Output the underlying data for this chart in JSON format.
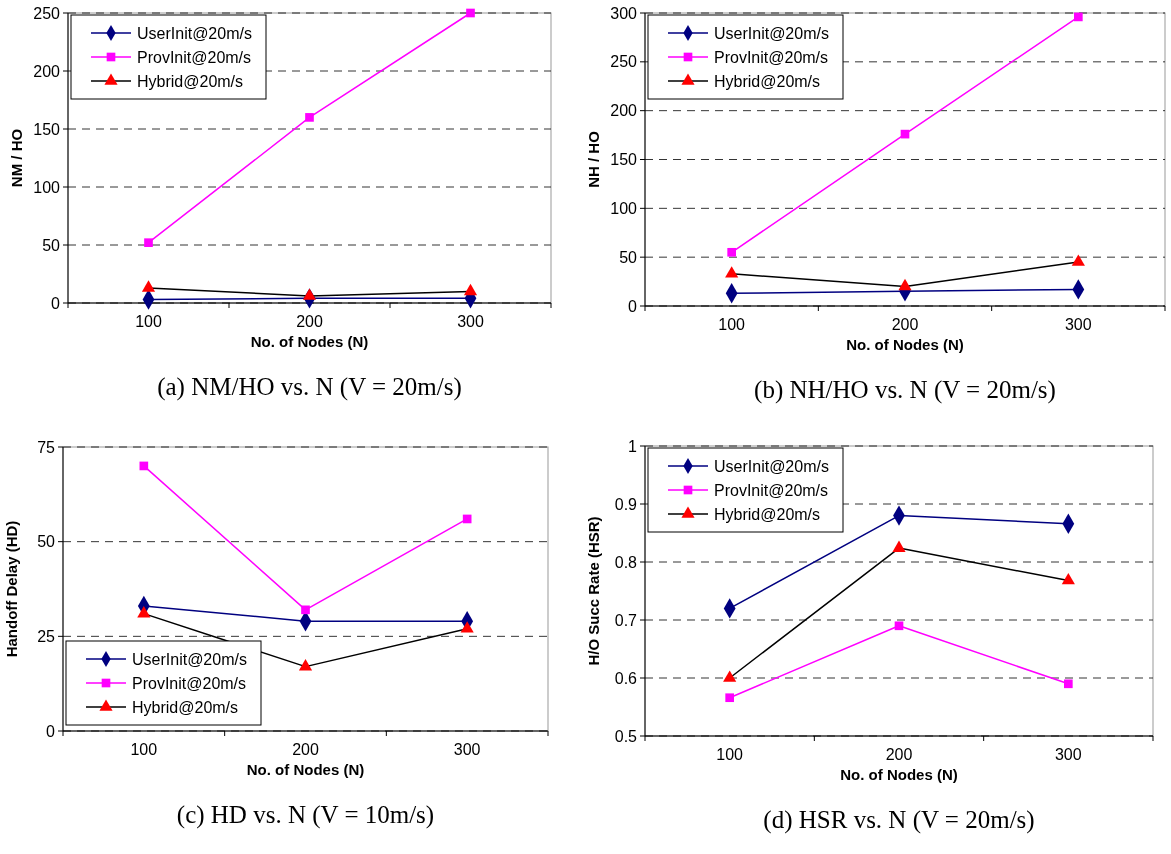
{
  "chart_data": [
    {
      "type": "line",
      "title": "(a) NM/HO vs. N (V = 20m/s)",
      "xlabel": "No. of Nodes (N)",
      "ylabel": "NM / HO",
      "categories": [
        "100",
        "200",
        "300"
      ],
      "ylim": [
        0,
        250
      ],
      "yticks": [
        0,
        50,
        100,
        150,
        200,
        250
      ],
      "grid": "y",
      "legend": "top left",
      "line_style": "solid",
      "series": [
        {
          "name": "UserInit@20m/s",
          "color": "#000080",
          "marker": "diamond",
          "values": [
            3,
            4,
            4
          ]
        },
        {
          "name": "ProvInit@20m/s",
          "color": "#ff00ff",
          "marker": "square",
          "values": [
            52,
            160,
            250
          ]
        },
        {
          "name": "Hybrid@20m/s",
          "color": "#000000",
          "colors": [
            "#ff0000",
            "#ff0000",
            "#ff0000"
          ],
          "marker": "triangle",
          "values": [
            13,
            6,
            10
          ]
        }
      ]
    },
    {
      "type": "line",
      "title": "(b) NH/HO vs. N (V = 20m/s)",
      "xlabel": "No. of Nodes (N)",
      "ylabel": "NH / HO",
      "categories": [
        "100",
        "200",
        "300"
      ],
      "ylim": [
        0,
        300
      ],
      "yticks": [
        0,
        50,
        100,
        150,
        200,
        250,
        300
      ],
      "grid": "y",
      "legend": "top left",
      "line_style": "solid",
      "series": [
        {
          "name": "UserInit@20m/s",
          "color": "#000080",
          "marker": "diamond",
          "values": [
            13,
            15,
            17
          ]
        },
        {
          "name": "ProvInit@20m/s",
          "color": "#ff00ff",
          "marker": "square",
          "values": [
            55,
            176,
            296
          ]
        },
        {
          "name": "Hybrid@20m/s",
          "color": "#000000",
          "colors": [
            "#ff0000",
            "#ff0000",
            "#ff0000"
          ],
          "marker": "triangle",
          "values": [
            33,
            20,
            45
          ]
        }
      ]
    },
    {
      "type": "line",
      "title": "(c) HD vs. N (V = 10m/s)",
      "xlabel": "No. of Nodes (N)",
      "ylabel": "Handoff Delay (HD)",
      "categories": [
        "100",
        "200",
        "300"
      ],
      "ylim": [
        0,
        75
      ],
      "yticks": [
        0,
        25,
        50,
        75
      ],
      "grid": "y",
      "legend": "bottom left",
      "line_style": "solid",
      "series": [
        {
          "name": "UserInit@20m/s",
          "color": "#000080",
          "marker": "diamond",
          "values": [
            33,
            29,
            29
          ]
        },
        {
          "name": "ProvInit@20m/s",
          "color": "#ff00ff",
          "marker": "square",
          "values": [
            70,
            32,
            56
          ]
        },
        {
          "name": "Hybrid@20m/s",
          "color": "#000000",
          "colors": [
            "#ff0000",
            "#ff0000",
            "#ff0000"
          ],
          "marker": "triangle",
          "values": [
            31,
            17,
            27
          ]
        }
      ]
    },
    {
      "type": "line",
      "title": "(d) HSR vs. N (V = 20m/s)",
      "xlabel": "No. of Nodes (N)",
      "ylabel": "H/O Succ Rate (HSR)",
      "categories": [
        "100",
        "200",
        "300"
      ],
      "ylim": [
        0.5,
        1
      ],
      "yticks": [
        0.5,
        0.6,
        0.7,
        0.8,
        0.9,
        1
      ],
      "grid": "y",
      "legend": "top left",
      "line_style": "solid",
      "series": [
        {
          "name": "UserInit@20m/s",
          "color": "#000080",
          "marker": "diamond",
          "values": [
            0.72,
            0.88,
            0.866
          ]
        },
        {
          "name": "ProvInit@20m/s",
          "color": "#ff00ff",
          "marker": "square",
          "values": [
            0.566,
            0.69,
            0.59
          ]
        },
        {
          "name": "Hybrid@20m/s",
          "color": "#000000",
          "colors": [
            "#ff0000",
            "#ff0000",
            "#ff0000"
          ],
          "marker": "triangle",
          "values": [
            0.6,
            0.824,
            0.768
          ]
        }
      ]
    }
  ]
}
